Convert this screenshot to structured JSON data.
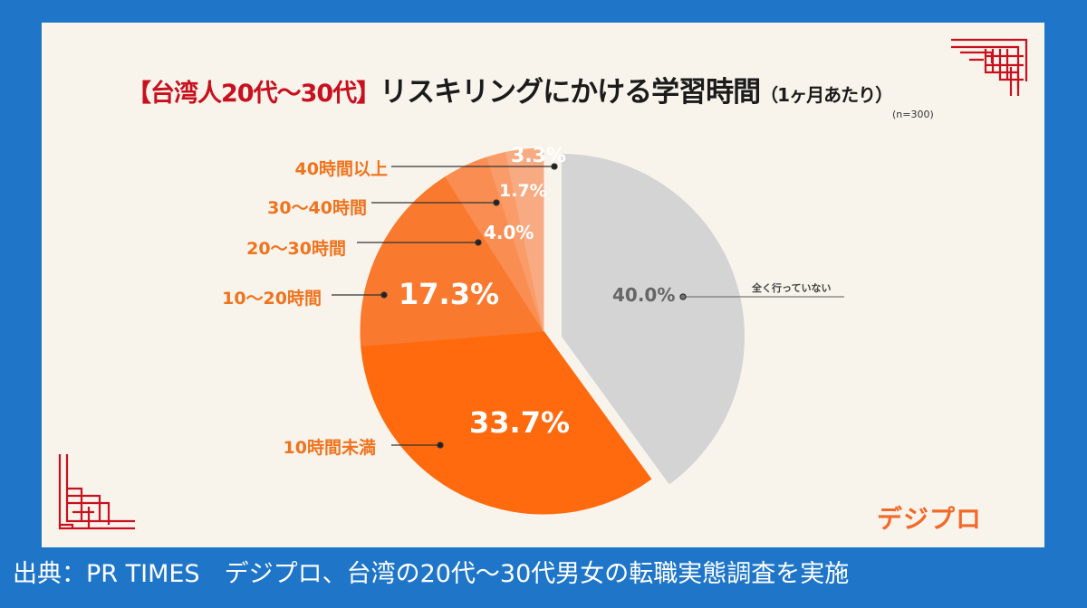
{
  "chart_data": {
    "type": "pie",
    "title_bracket": "【台湾人20代〜30代】",
    "title_main": "リスキリングにかける学習時間",
    "title_sub": "（1ヶ月あたり）",
    "sample": "(n=300)",
    "slices": [
      {
        "label": "全く行っていない",
        "value": 40.0,
        "display": "40.0%",
        "color": "#d4d4d4",
        "exploded": true
      },
      {
        "label": "10時間未満",
        "value": 33.7,
        "display": "33.7%",
        "color": "#ff6a0e"
      },
      {
        "label": "10〜20時間",
        "value": 17.3,
        "display": "17.3%",
        "color": "#f97a2e"
      },
      {
        "label": "20〜30時間",
        "value": 4.0,
        "display": "4.0%",
        "color": "#fa8e52"
      },
      {
        "label": "30〜40時間",
        "value": 1.7,
        "display": "1.7%",
        "color": "#f99c69"
      },
      {
        "label": "40時間以上",
        "value": 3.3,
        "display": "3.3%",
        "color": "#f8ab83"
      }
    ],
    "start": "12 o'clock, clockwise"
  },
  "logo": "デジプロ",
  "footer": "出典：PR TIMES　デジプロ、台湾の20代〜30代男女の転職実態調査を実施",
  "colors": {
    "frame": "#1f76c9",
    "panel": "#f8f4ec",
    "accent": "#f0731e",
    "ornament": "#c8101e"
  }
}
